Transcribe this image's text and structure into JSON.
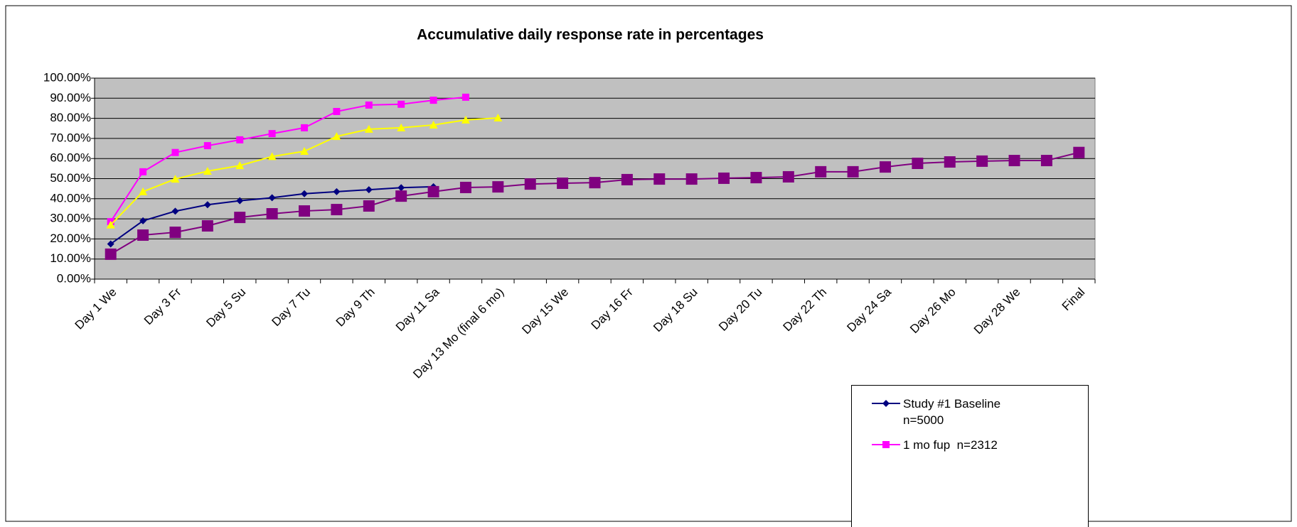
{
  "chart_data": {
    "type": "line",
    "title": "Accumulative daily response rate in percentages",
    "categories": [
      "Day 1 We",
      null,
      "Day 3 Fr",
      null,
      "Day 5  Su",
      null,
      "Day 7  Tu",
      null,
      "Day 9   Th",
      null,
      "Day 11 Sa",
      null,
      "Day 13 Mo (final 6 mo)",
      null,
      "Day 15 We",
      null,
      "Day 16 Fr",
      null,
      "Day 18 Su",
      null,
      "Day 20 Tu",
      null,
      "Day 22 Th",
      null,
      "Day 24 Sa",
      null,
      "Day 26 Mo",
      null,
      "Day 28 We",
      null,
      "Final"
    ],
    "series": [
      {
        "name": "Study #1 Baseline n=5000",
        "color": "#000080",
        "marker": "diamond",
        "values": [
          17.5,
          29,
          33.8,
          37,
          39,
          40.5,
          42.5,
          43.5,
          44.5,
          45.5,
          46,
          null,
          null,
          null,
          null,
          null,
          null,
          null,
          null,
          null,
          null,
          null,
          null,
          null,
          null,
          null,
          null,
          null,
          null,
          null,
          null
        ]
      },
      {
        "name": "1 mo fup  n=2312",
        "color": "#ff00ff",
        "marker": "square",
        "values": [
          28.6,
          53.4,
          63,
          66.4,
          69.3,
          72.4,
          75.3,
          83.4,
          86.6,
          87,
          89,
          90.5,
          null,
          null,
          null,
          null,
          null,
          null,
          null,
          null,
          null,
          null,
          null,
          null,
          null,
          null,
          null,
          null,
          null,
          null,
          null
        ]
      },
      {
        "color": "#ffff00",
        "marker": "triangle",
        "values": [
          27,
          43.5,
          49.8,
          53.7,
          56.5,
          61,
          63.6,
          71,
          74.6,
          75.3,
          76.7,
          79.2,
          80.2,
          null,
          null,
          null,
          null,
          null,
          null,
          null,
          null,
          null,
          null,
          null,
          null,
          null,
          null,
          null,
          null,
          null,
          null
        ]
      },
      {
        "color": "#800080",
        "marker": "bigsquare",
        "values": [
          12.4,
          21.9,
          23.3,
          26.5,
          30.7,
          32.5,
          33.9,
          34.6,
          36.4,
          41.3,
          43.5,
          45.6,
          45.9,
          47.3,
          47.7,
          48,
          49.5,
          49.8,
          49.8,
          50.2,
          50.5,
          50.9,
          53.4,
          53.4,
          55.8,
          57.6,
          58.3,
          58.7,
          59,
          59,
          63
        ]
      }
    ],
    "ylim": [
      0,
      100
    ],
    "yticks": [
      {
        "value": 0,
        "label": "0.00%"
      },
      {
        "value": 10,
        "label": "10.00%"
      },
      {
        "value": 20,
        "label": "20.00%"
      },
      {
        "value": 30,
        "label": "30.00%"
      },
      {
        "value": 40,
        "label": "40.00%"
      },
      {
        "value": 50,
        "label": "50.00%"
      },
      {
        "value": 60,
        "label": "60.00%"
      },
      {
        "value": 70,
        "label": "70.00%"
      },
      {
        "value": 80,
        "label": "80.00%"
      },
      {
        "value": 90,
        "label": "90.00%"
      },
      {
        "value": 100,
        "label": "100.00%"
      }
    ],
    "grid": true,
    "plot_background": "#c0c0c0",
    "legend": "bottom-right"
  }
}
